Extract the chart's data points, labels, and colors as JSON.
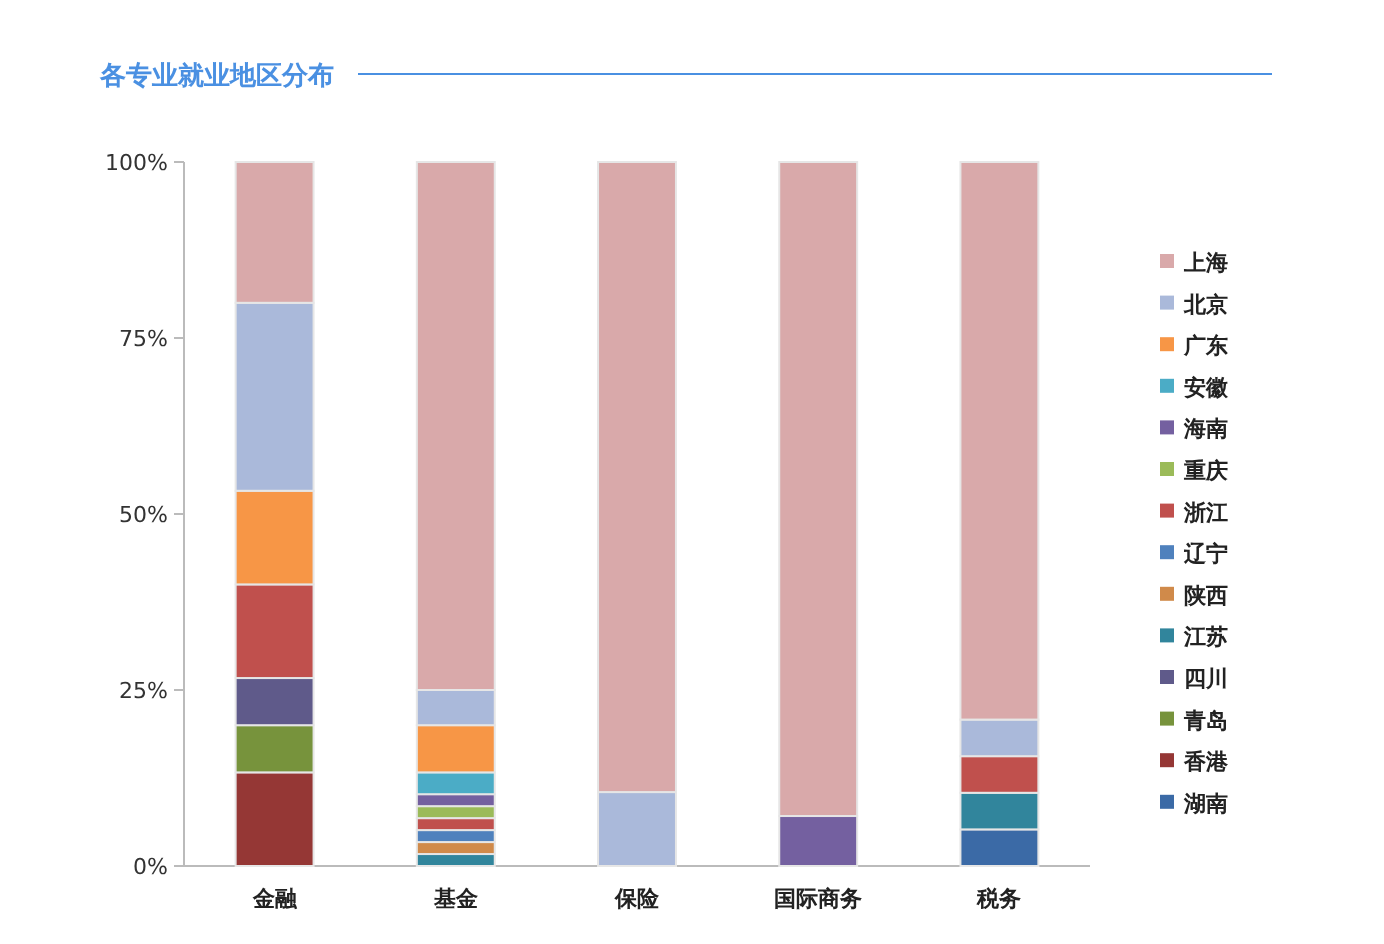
{
  "chart_data": {
    "type": "bar",
    "title": "各专业就业地区分布",
    "stacked": true,
    "legend": "right",
    "ylim": [
      0,
      100
    ],
    "yticks": [
      {
        "value": 0,
        "label": "0%"
      },
      {
        "value": 25,
        "label": "25%"
      },
      {
        "value": 50,
        "label": "50%"
      },
      {
        "value": 75,
        "label": "75%"
      },
      {
        "value": 100,
        "label": "100%"
      }
    ],
    "categories": [
      "金融",
      "基金",
      "保险",
      "国际商务",
      "税务"
    ],
    "series": [
      {
        "name": "湖南",
        "color": "#3b6aa6",
        "values": [
          null,
          null,
          null,
          null,
          5.2
        ]
      },
      {
        "name": "香港",
        "color": "#953735",
        "values": [
          13.3,
          null,
          null,
          null,
          null
        ]
      },
      {
        "name": "青岛",
        "color": "#77933c",
        "values": [
          6.7,
          null,
          null,
          null,
          null
        ]
      },
      {
        "name": "四川",
        "color": "#5f5a8a",
        "values": [
          6.7,
          null,
          null,
          null,
          null
        ]
      },
      {
        "name": "江苏",
        "color": "#31859c",
        "values": [
          null,
          1.7,
          null,
          null,
          5.2
        ]
      },
      {
        "name": "陕西",
        "color": "#d08a4a",
        "values": [
          null,
          1.7,
          null,
          null,
          null
        ]
      },
      {
        "name": "辽宁",
        "color": "#4f81bd",
        "values": [
          null,
          1.7,
          null,
          null,
          null
        ]
      },
      {
        "name": "浙江",
        "color": "#c0504d",
        "values": [
          13.3,
          1.7,
          null,
          null,
          5.2
        ]
      },
      {
        "name": "重庆",
        "color": "#9bbb59",
        "values": [
          null,
          1.7,
          null,
          null,
          null
        ]
      },
      {
        "name": "海南",
        "color": "#7460a0",
        "values": [
          null,
          1.7,
          null,
          7.1,
          null
        ]
      },
      {
        "name": "安徽",
        "color": "#4bacc6",
        "values": [
          null,
          3.1,
          null,
          null,
          null
        ]
      },
      {
        "name": "广东",
        "color": "#f79646",
        "values": [
          13.3,
          6.7,
          null,
          null,
          null
        ]
      },
      {
        "name": "北京",
        "color": "#aab9da",
        "values": [
          26.7,
          5,
          10.5,
          null,
          5.2
        ]
      },
      {
        "name": "上海",
        "color": "#d9a9aa",
        "values": [
          20,
          75,
          89.5,
          92.9,
          79.2
        ]
      }
    ]
  }
}
